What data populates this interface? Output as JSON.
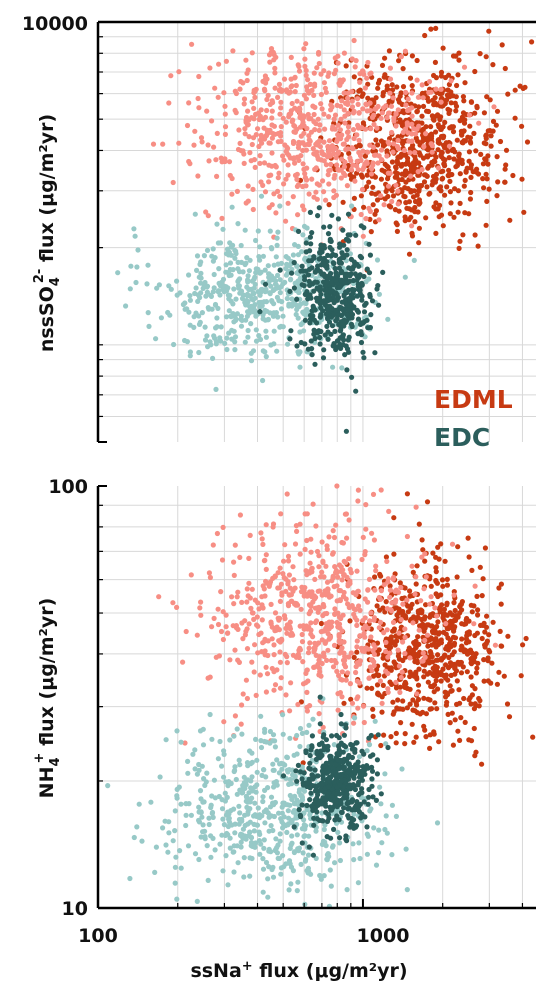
{
  "chart_data": [
    {
      "type": "scatter",
      "panel": "top",
      "ylabel": "nssSO₄²⁻ flux (μg/m²yr)",
      "ylabel_parts": {
        "pre": "nssSO",
        "sub": "4",
        "sup": "2-",
        "post": " flux (μg/m²yr)"
      },
      "xscale": "log",
      "yscale": "log",
      "xlim": [
        100,
        4500
      ],
      "ylim": [
        500,
        10000
      ],
      "y_tick_labels": [
        "10000"
      ],
      "grid": true,
      "legend": {
        "placement": "right-middle",
        "entries": [
          "EDML",
          "EDC"
        ]
      },
      "series": [
        {
          "name": "EDML",
          "color": "#c73a12",
          "cluster": {
            "x_center": 1600,
            "y_center": 4200,
            "x_spread": 0.16,
            "y_spread": 0.13,
            "count": 700
          }
        },
        {
          "name": "EDML",
          "color": "#f78e84",
          "cluster": {
            "x_center": 650,
            "y_center": 4600,
            "x_spread": 0.22,
            "y_spread": 0.12,
            "count": 650
          }
        },
        {
          "name": "EDC",
          "color": "#97c9c7",
          "cluster": {
            "x_center": 420,
            "y_center": 1450,
            "x_spread": 0.2,
            "y_spread": 0.1,
            "count": 550
          }
        },
        {
          "name": "EDC",
          "color": "#2b5e5c",
          "cluster": {
            "x_center": 780,
            "y_center": 1450,
            "x_spread": 0.07,
            "y_spread": 0.1,
            "count": 420
          }
        }
      ]
    },
    {
      "type": "scatter",
      "panel": "bottom",
      "xlabel": "ssNa⁺ flux (μg/m²yr)",
      "xlabel_parts": {
        "pre": "ssNa",
        "sup": "+",
        "post": " flux (μg/m²yr)"
      },
      "ylabel": "NH₄⁺ flux (μg/m²yr)",
      "ylabel_parts": {
        "pre": "NH",
        "sub": "4",
        "sup": "+",
        "post": " flux (μg/m²yr)"
      },
      "xscale": "log",
      "yscale": "log",
      "xlim": [
        100,
        4500
      ],
      "ylim": [
        10,
        100
      ],
      "x_tick_labels": [
        "100",
        "1000"
      ],
      "y_tick_labels": [
        "100",
        "10"
      ],
      "grid": true,
      "series": [
        {
          "name": "EDML",
          "color": "#c73a12",
          "cluster": {
            "x_center": 1700,
            "y_center": 41,
            "x_spread": 0.14,
            "y_spread": 0.1,
            "count": 650
          }
        },
        {
          "name": "EDML",
          "color": "#f78e84",
          "cluster": {
            "x_center": 650,
            "y_center": 50,
            "x_spread": 0.2,
            "y_spread": 0.11,
            "count": 650
          }
        },
        {
          "name": "EDC",
          "color": "#97c9c7",
          "cluster": {
            "x_center": 470,
            "y_center": 17,
            "x_spread": 0.2,
            "y_spread": 0.1,
            "count": 600
          }
        },
        {
          "name": "EDC",
          "color": "#2b5e5c",
          "cluster": {
            "x_center": 790,
            "y_center": 20,
            "x_spread": 0.07,
            "y_spread": 0.06,
            "count": 420
          }
        }
      ]
    }
  ]
}
